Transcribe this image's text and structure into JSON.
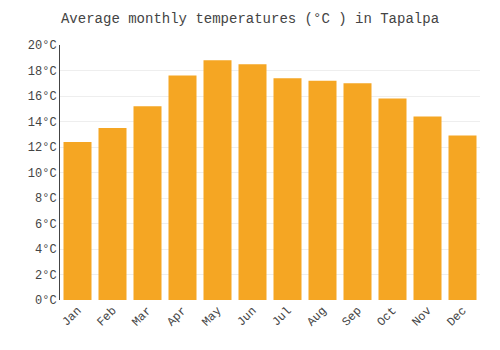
{
  "chart_data": {
    "type": "bar",
    "title": "Average monthly temperatures (°C ) in Tapalpa",
    "categories": [
      "Jan",
      "Feb",
      "Mar",
      "Apr",
      "May",
      "Jun",
      "Jul",
      "Aug",
      "Sep",
      "Oct",
      "Nov",
      "Dec"
    ],
    "values": [
      12.4,
      13.5,
      15.2,
      17.6,
      18.8,
      18.5,
      17.4,
      17.2,
      17.0,
      15.8,
      14.4,
      12.9
    ],
    "color": "#F5A623",
    "ylim": [
      0,
      20
    ],
    "yticks": [
      {
        "value": 0,
        "label": "0°C"
      },
      {
        "value": 2,
        "label": "2°C"
      },
      {
        "value": 4,
        "label": "4°C"
      },
      {
        "value": 6,
        "label": "6°C"
      },
      {
        "value": 8,
        "label": "8°C"
      },
      {
        "value": 10,
        "label": "10°C"
      },
      {
        "value": 12,
        "label": "12°C"
      },
      {
        "value": 14,
        "label": "14°C"
      },
      {
        "value": 16,
        "label": "16°C"
      },
      {
        "value": 18,
        "label": "18°C"
      },
      {
        "value": 20,
        "label": "20°C"
      }
    ],
    "grid": true
  }
}
